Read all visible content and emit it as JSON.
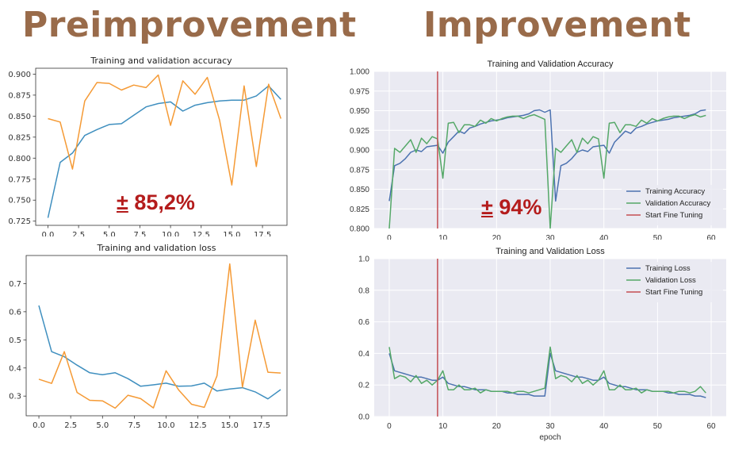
{
  "headings": {
    "left": "Preimprovement",
    "right": "Improvement"
  },
  "annotations": {
    "left_symbol": "±",
    "left_value": "85,2%",
    "right_symbol": "±",
    "right_value": "94%"
  },
  "colors": {
    "heading": "#996b4a",
    "annotation": "#b41c1c",
    "pre_train": "#3f8fbf",
    "pre_val": "#f59a35",
    "imp_train": "#4c72b0",
    "imp_val": "#55a868",
    "imp_fine": "#c44e52",
    "imp_bg": "#eaeaf2"
  },
  "chart_data": [
    {
      "type": "line",
      "title": "Training and validation accuracy",
      "xlim": [
        -1,
        19.5
      ],
      "ylim": [
        0.72,
        0.907
      ],
      "xticks": [
        "0.0",
        "2.5",
        "5.0",
        "7.5",
        "10.0",
        "12.5",
        "15.0",
        "17.5"
      ],
      "xtick_values": [
        0,
        2.5,
        5,
        7.5,
        10,
        12.5,
        15,
        17.5
      ],
      "yticks": [
        "0.725",
        "0.750",
        "0.775",
        "0.800",
        "0.825",
        "0.850",
        "0.875",
        "0.900"
      ],
      "ytick_values": [
        0.725,
        0.75,
        0.775,
        0.8,
        0.825,
        0.85,
        0.875,
        0.9
      ],
      "grid": false,
      "series": [
        {
          "color_key": "pre_train",
          "x": [
            0,
            1,
            2,
            3,
            4,
            5,
            6,
            7,
            8,
            9,
            10,
            11,
            12,
            13,
            14,
            15,
            16,
            17,
            18,
            19
          ],
          "values": [
            0.729,
            0.795,
            0.806,
            0.827,
            0.834,
            0.84,
            0.841,
            0.851,
            0.861,
            0.865,
            0.867,
            0.856,
            0.863,
            0.866,
            0.868,
            0.869,
            0.869,
            0.874,
            0.886,
            0.87
          ]
        },
        {
          "color_key": "pre_val",
          "x": [
            0,
            1,
            2,
            3,
            4,
            5,
            6,
            7,
            8,
            9,
            10,
            11,
            12,
            13,
            14,
            15,
            16,
            17,
            18,
            19
          ],
          "values": [
            0.847,
            0.843,
            0.787,
            0.868,
            0.89,
            0.889,
            0.881,
            0.887,
            0.884,
            0.899,
            0.839,
            0.892,
            0.876,
            0.896,
            0.845,
            0.768,
            0.886,
            0.79,
            0.888,
            0.847
          ]
        }
      ]
    },
    {
      "type": "line",
      "title": "Training and validation loss",
      "xlim": [
        -1,
        19.5
      ],
      "ylim": [
        0.23,
        0.8
      ],
      "xticks": [
        "0.0",
        "2.5",
        "5.0",
        "7.5",
        "10.0",
        "12.5",
        "15.0",
        "17.5"
      ],
      "xtick_values": [
        0,
        2.5,
        5,
        7.5,
        10,
        12.5,
        15,
        17.5
      ],
      "yticks": [
        "0.3",
        "0.4",
        "0.5",
        "0.6",
        "0.7"
      ],
      "ytick_values": [
        0.3,
        0.4,
        0.5,
        0.6,
        0.7
      ],
      "grid": false,
      "series": [
        {
          "color_key": "pre_train",
          "x": [
            0,
            1,
            2,
            3,
            4,
            5,
            6,
            7,
            8,
            9,
            10,
            11,
            12,
            13,
            14,
            15,
            16,
            17,
            18,
            19
          ],
          "values": [
            0.622,
            0.458,
            0.44,
            0.41,
            0.383,
            0.376,
            0.383,
            0.362,
            0.335,
            0.34,
            0.346,
            0.335,
            0.336,
            0.346,
            0.318,
            0.325,
            0.33,
            0.315,
            0.29,
            0.323
          ]
        },
        {
          "color_key": "pre_val",
          "x": [
            0,
            1,
            2,
            3,
            4,
            5,
            6,
            7,
            8,
            9,
            10,
            11,
            12,
            13,
            14,
            15,
            16,
            17,
            18,
            19
          ],
          "values": [
            0.36,
            0.345,
            0.458,
            0.313,
            0.285,
            0.283,
            0.257,
            0.303,
            0.291,
            0.258,
            0.39,
            0.321,
            0.271,
            0.26,
            0.372,
            0.77,
            0.332,
            0.57,
            0.385,
            0.382
          ]
        }
      ]
    },
    {
      "type": "line",
      "title": "Training and Validation Accuracy",
      "xlim": [
        -2.8,
        62.8
      ],
      "ylim": [
        0.8,
        1.0
      ],
      "xticks": [
        "0",
        "10",
        "20",
        "30",
        "40",
        "50",
        "60"
      ],
      "xtick_values": [
        0,
        10,
        20,
        30,
        40,
        50,
        60
      ],
      "yticks": [
        "0.800",
        "0.825",
        "0.850",
        "0.875",
        "0.900",
        "0.925",
        "0.950",
        "0.975",
        "1.000"
      ],
      "ytick_values": [
        0.8,
        0.825,
        0.85,
        0.875,
        0.9,
        0.925,
        0.95,
        0.975,
        1.0
      ],
      "grid": true,
      "fine_tune_x": 9,
      "legend": "bottom-right",
      "series": [
        {
          "name": "Training Accuracy",
          "color_key": "imp_train",
          "x": [
            0,
            1,
            2,
            3,
            4,
            5,
            6,
            7,
            8,
            9,
            10,
            11,
            12,
            13,
            14,
            15,
            16,
            17,
            18,
            19,
            20,
            21,
            22,
            23,
            24,
            25,
            26,
            27,
            28,
            29,
            30,
            31,
            32,
            33,
            34,
            35,
            36,
            37,
            38,
            39,
            40,
            41,
            42,
            43,
            44,
            45,
            46,
            47,
            48,
            49,
            50,
            51,
            52,
            53,
            54,
            55,
            56,
            57,
            58,
            59
          ],
          "values": [
            0.835,
            0.88,
            0.883,
            0.889,
            0.897,
            0.9,
            0.898,
            0.904,
            0.905,
            0.906,
            0.896,
            0.91,
            0.917,
            0.924,
            0.921,
            0.928,
            0.93,
            0.933,
            0.935,
            0.937,
            0.938,
            0.939,
            0.941,
            0.942,
            0.943,
            0.944,
            0.946,
            0.95,
            0.951,
            0.948,
            0.951,
            0.835,
            0.88,
            0.883,
            0.889,
            0.897,
            0.9,
            0.898,
            0.904,
            0.905,
            0.906,
            0.896,
            0.91,
            0.917,
            0.924,
            0.921,
            0.928,
            0.93,
            0.933,
            0.935,
            0.937,
            0.938,
            0.939,
            0.941,
            0.942,
            0.943,
            0.944,
            0.946,
            0.95,
            0.951
          ]
        },
        {
          "name": "Validation Accuracy",
          "color_key": "imp_val",
          "x": [
            0,
            1,
            2,
            3,
            4,
            5,
            6,
            7,
            8,
            9,
            10,
            11,
            12,
            13,
            14,
            15,
            16,
            17,
            18,
            19,
            20,
            21,
            22,
            23,
            24,
            25,
            26,
            27,
            28,
            29,
            30,
            31,
            32,
            33,
            34,
            35,
            36,
            37,
            38,
            39,
            40,
            41,
            42,
            43,
            44,
            45,
            46,
            47,
            48,
            49,
            50,
            51,
            52,
            53,
            54,
            55,
            56,
            57,
            58,
            59
          ],
          "values": [
            0.8,
            0.902,
            0.897,
            0.905,
            0.913,
            0.897,
            0.915,
            0.908,
            0.917,
            0.914,
            0.864,
            0.934,
            0.935,
            0.922,
            0.932,
            0.932,
            0.93,
            0.938,
            0.934,
            0.94,
            0.937,
            0.94,
            0.942,
            0.943,
            0.943,
            0.94,
            0.943,
            0.945,
            0.942,
            0.939,
            0.8,
            0.902,
            0.897,
            0.905,
            0.913,
            0.897,
            0.915,
            0.908,
            0.917,
            0.914,
            0.864,
            0.934,
            0.935,
            0.922,
            0.932,
            0.932,
            0.93,
            0.938,
            0.934,
            0.94,
            0.937,
            0.94,
            0.942,
            0.943,
            0.943,
            0.94,
            0.943,
            0.945,
            0.942,
            0.944
          ]
        },
        {
          "name": "Start Fine Tuning",
          "color_key": "imp_fine",
          "x": [
            9,
            9
          ],
          "values": [
            0.8,
            1.0
          ]
        }
      ]
    },
    {
      "type": "line",
      "title": "Training and Validation Loss",
      "xlabel": "epoch",
      "xlim": [
        -2.8,
        62.8
      ],
      "ylim": [
        0.0,
        1.0
      ],
      "xticks": [
        "0",
        "10",
        "20",
        "30",
        "40",
        "50",
        "60"
      ],
      "xtick_values": [
        0,
        10,
        20,
        30,
        40,
        50,
        60
      ],
      "yticks": [
        "0.0",
        "0.2",
        "0.4",
        "0.6",
        "0.8",
        "1.0"
      ],
      "ytick_values": [
        0.0,
        0.2,
        0.4,
        0.6,
        0.8,
        1.0
      ],
      "grid": true,
      "fine_tune_x": 9,
      "legend": "top-right",
      "series": [
        {
          "name": "Training Loss",
          "color_key": "imp_train",
          "x": [
            0,
            1,
            2,
            3,
            4,
            5,
            6,
            7,
            8,
            9,
            10,
            11,
            12,
            13,
            14,
            15,
            16,
            17,
            18,
            19,
            20,
            21,
            22,
            23,
            24,
            25,
            26,
            27,
            28,
            29,
            30,
            31,
            32,
            33,
            34,
            35,
            36,
            37,
            38,
            39,
            40,
            41,
            42,
            43,
            44,
            45,
            46,
            47,
            48,
            49,
            50,
            51,
            52,
            53,
            54,
            55,
            56,
            57,
            58,
            59
          ],
          "values": [
            0.4,
            0.29,
            0.28,
            0.27,
            0.26,
            0.25,
            0.25,
            0.24,
            0.23,
            0.23,
            0.25,
            0.21,
            0.2,
            0.19,
            0.19,
            0.18,
            0.17,
            0.17,
            0.17,
            0.16,
            0.16,
            0.16,
            0.15,
            0.15,
            0.14,
            0.14,
            0.14,
            0.13,
            0.13,
            0.13,
            0.4,
            0.29,
            0.28,
            0.27,
            0.26,
            0.25,
            0.25,
            0.24,
            0.23,
            0.23,
            0.25,
            0.21,
            0.2,
            0.19,
            0.19,
            0.18,
            0.17,
            0.17,
            0.17,
            0.16,
            0.16,
            0.16,
            0.15,
            0.15,
            0.14,
            0.14,
            0.14,
            0.13,
            0.13,
            0.12
          ]
        },
        {
          "name": "Validation Loss",
          "color_key": "imp_val",
          "x": [
            0,
            1,
            2,
            3,
            4,
            5,
            6,
            7,
            8,
            9,
            10,
            11,
            12,
            13,
            14,
            15,
            16,
            17,
            18,
            19,
            20,
            21,
            22,
            23,
            24,
            25,
            26,
            27,
            28,
            29,
            30,
            31,
            32,
            33,
            34,
            35,
            36,
            37,
            38,
            39,
            40,
            41,
            42,
            43,
            44,
            45,
            46,
            47,
            48,
            49,
            50,
            51,
            52,
            53,
            54,
            55,
            56,
            57,
            58,
            59
          ],
          "values": [
            0.44,
            0.24,
            0.26,
            0.25,
            0.22,
            0.26,
            0.21,
            0.23,
            0.2,
            0.23,
            0.29,
            0.17,
            0.17,
            0.2,
            0.17,
            0.17,
            0.18,
            0.15,
            0.17,
            0.16,
            0.16,
            0.16,
            0.16,
            0.15,
            0.16,
            0.16,
            0.15,
            0.16,
            0.17,
            0.18,
            0.44,
            0.24,
            0.26,
            0.25,
            0.22,
            0.26,
            0.21,
            0.23,
            0.2,
            0.23,
            0.29,
            0.17,
            0.17,
            0.2,
            0.17,
            0.17,
            0.18,
            0.15,
            0.17,
            0.16,
            0.16,
            0.16,
            0.16,
            0.15,
            0.16,
            0.16,
            0.15,
            0.16,
            0.19,
            0.15
          ]
        },
        {
          "name": "Start Fine Tuning",
          "color_key": "imp_fine",
          "x": [
            9,
            9
          ],
          "values": [
            0.0,
            1.0
          ]
        }
      ]
    }
  ]
}
